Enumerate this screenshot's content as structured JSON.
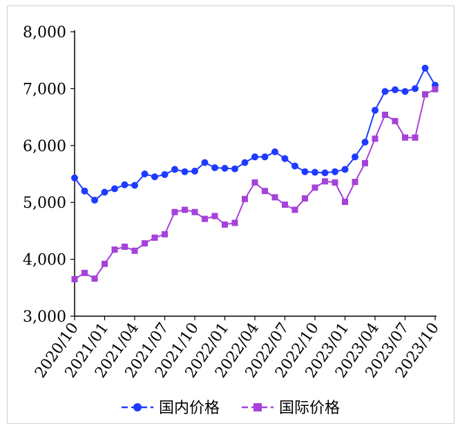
{
  "chart_data": {
    "type": "line",
    "title": "",
    "xlabel": "",
    "ylabel": "",
    "ylim": [
      3000,
      8000
    ],
    "yticks": [
      "3,000",
      "4,000",
      "5,000",
      "6,000",
      "7,000",
      "8,000"
    ],
    "ytick_values": [
      3000,
      4000,
      5000,
      6000,
      7000,
      8000
    ],
    "xticks": [
      "2020/10",
      "2021/01",
      "2021/04",
      "2021/07",
      "2021/10",
      "2022/01",
      "2022/04",
      "2022/07",
      "2022/10",
      "2023/01",
      "2023/04",
      "2023/07",
      "2023/10"
    ],
    "x": [
      "2020/10",
      "2020/11",
      "2020/12",
      "2021/01",
      "2021/02",
      "2021/03",
      "2021/04",
      "2021/05",
      "2021/06",
      "2021/07",
      "2021/08",
      "2021/09",
      "2021/10",
      "2021/11",
      "2021/12",
      "2022/01",
      "2022/02",
      "2022/03",
      "2022/04",
      "2022/05",
      "2022/06",
      "2022/07",
      "2022/08",
      "2022/09",
      "2022/10",
      "2022/11",
      "2022/12",
      "2023/01",
      "2023/02",
      "2023/03",
      "2023/04",
      "2023/05",
      "2023/06",
      "2023/07",
      "2023/08",
      "2023/09",
      "2023/10"
    ],
    "grid": false,
    "legend_position": "bottom",
    "series": [
      {
        "name": "国内价格",
        "color": "#1f3bff",
        "marker": "circle",
        "values": [
          5430,
          5200,
          5040,
          5180,
          5240,
          5310,
          5300,
          5500,
          5450,
          5490,
          5580,
          5540,
          5550,
          5700,
          5610,
          5600,
          5590,
          5700,
          5800,
          5800,
          5890,
          5770,
          5640,
          5540,
          5530,
          5520,
          5540,
          5580,
          5800,
          6060,
          6620,
          6950,
          6980,
          6950,
          7000,
          7360,
          7060
        ]
      },
      {
        "name": "国际价格",
        "color": "#a542d9",
        "marker": "square",
        "values": [
          3650,
          3760,
          3660,
          3920,
          4170,
          4220,
          4150,
          4280,
          4380,
          4440,
          4830,
          4870,
          4830,
          4710,
          4760,
          4610,
          4640,
          5060,
          5350,
          5200,
          5090,
          4960,
          4870,
          5070,
          5260,
          5370,
          5350,
          5010,
          5360,
          5690,
          6120,
          6540,
          6430,
          6140,
          6140,
          6900,
          6990
        ]
      }
    ]
  }
}
